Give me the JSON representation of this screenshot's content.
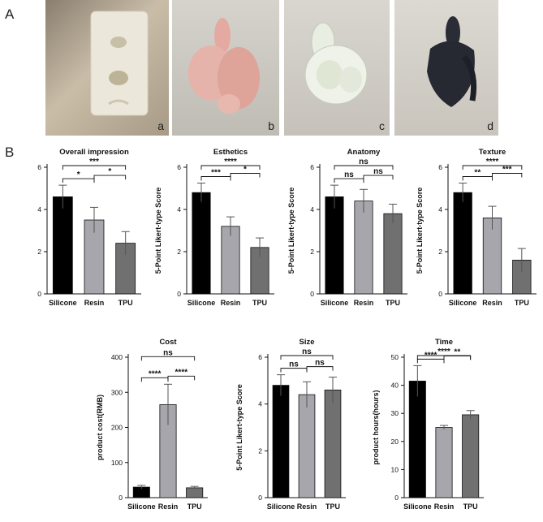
{
  "panel_labels": {
    "a": "A",
    "b": "B"
  },
  "photo_labels": [
    "a",
    "b",
    "c",
    "d"
  ],
  "chart_data": [
    {
      "type": "bar",
      "title": "Overall impression",
      "ylabel": "",
      "categories": [
        "Silicone",
        "Resin",
        "TPU"
      ],
      "values": [
        4.6,
        3.5,
        2.4
      ],
      "errors": [
        0.55,
        0.6,
        0.55
      ],
      "ylim": [
        0,
        6
      ],
      "yticks": [
        0,
        2,
        4,
        6
      ],
      "bar_colors": [
        "#000000",
        "#a6a6ac",
        "#707070"
      ],
      "significance": [
        {
          "from": 0,
          "to": 1,
          "label": "*"
        },
        {
          "from": 0,
          "to": 2,
          "label": "***"
        },
        {
          "from": 1,
          "to": 2,
          "label": "*"
        }
      ]
    },
    {
      "type": "bar",
      "title": "Esthetics",
      "ylabel": "5-Point Likert-type Score",
      "categories": [
        "Silicone",
        "Resin",
        "TPU"
      ],
      "values": [
        4.8,
        3.2,
        2.2
      ],
      "errors": [
        0.45,
        0.45,
        0.45
      ],
      "ylim": [
        0,
        6
      ],
      "yticks": [
        0,
        2,
        4,
        6
      ],
      "bar_colors": [
        "#000000",
        "#a6a6ac",
        "#707070"
      ],
      "significance": [
        {
          "from": 0,
          "to": 1,
          "label": "***"
        },
        {
          "from": 0,
          "to": 2,
          "label": "****"
        },
        {
          "from": 1,
          "to": 2,
          "label": "*"
        }
      ]
    },
    {
      "type": "bar",
      "title": "Anatomy",
      "ylabel": "5-Point Likert-type Score",
      "categories": [
        "Silicone",
        "Resin",
        "TPU"
      ],
      "values": [
        4.6,
        4.4,
        3.8
      ],
      "errors": [
        0.55,
        0.55,
        0.45
      ],
      "ylim": [
        0,
        6
      ],
      "yticks": [
        0,
        2,
        4,
        6
      ],
      "bar_colors": [
        "#000000",
        "#a6a6ac",
        "#707070"
      ],
      "significance": [
        {
          "from": 0,
          "to": 1,
          "label": "ns"
        },
        {
          "from": 0,
          "to": 2,
          "label": "ns"
        },
        {
          "from": 1,
          "to": 2,
          "label": "ns"
        }
      ]
    },
    {
      "type": "bar",
      "title": "Texture",
      "ylabel": "5-Point Likert-type Score",
      "categories": [
        "Silicone",
        "Resin",
        "TPU"
      ],
      "values": [
        4.8,
        3.6,
        1.6
      ],
      "errors": [
        0.45,
        0.55,
        0.55
      ],
      "ylim": [
        0,
        6
      ],
      "yticks": [
        0,
        2,
        4,
        6
      ],
      "bar_colors": [
        "#000000",
        "#a6a6ac",
        "#707070"
      ],
      "significance": [
        {
          "from": 0,
          "to": 1,
          "label": "**"
        },
        {
          "from": 0,
          "to": 2,
          "label": "****"
        },
        {
          "from": 1,
          "to": 2,
          "label": "***"
        }
      ]
    },
    {
      "type": "bar",
      "title": "Cost",
      "ylabel": "product cost(RMB)",
      "categories": [
        "Silicone",
        "Resin",
        "TPU"
      ],
      "values": [
        30,
        265,
        28
      ],
      "errors": [
        5,
        58,
        4
      ],
      "ylim": [
        0,
        400
      ],
      "yticks": [
        0,
        100,
        200,
        300,
        400
      ],
      "bar_colors": [
        "#000000",
        "#a6a6ac",
        "#707070"
      ],
      "significance": [
        {
          "from": 0,
          "to": 1,
          "label": "****"
        },
        {
          "from": 1,
          "to": 2,
          "label": "****"
        },
        {
          "from": 0,
          "to": 2,
          "label": "ns"
        }
      ]
    },
    {
      "type": "bar",
      "title": "Size",
      "ylabel": "5-Point Likert-type Score",
      "categories": [
        "Silicone",
        "Resin",
        "TPU"
      ],
      "values": [
        4.8,
        4.4,
        4.6
      ],
      "errors": [
        0.45,
        0.55,
        0.55
      ],
      "ylim": [
        0,
        6
      ],
      "yticks": [
        0,
        2,
        4,
        6
      ],
      "bar_colors": [
        "#000000",
        "#a6a6ac",
        "#707070"
      ],
      "significance": [
        {
          "from": 0,
          "to": 1,
          "label": "ns"
        },
        {
          "from": 1,
          "to": 2,
          "label": "ns"
        },
        {
          "from": 0,
          "to": 2,
          "label": "ns"
        }
      ]
    },
    {
      "type": "bar",
      "title": "Time",
      "ylabel": "product hours(hours)",
      "categories": [
        "Silicone",
        "Resin",
        "TPU"
      ],
      "values": [
        41.5,
        25,
        29.5
      ],
      "errors": [
        5.5,
        0.7,
        1.5
      ],
      "ylim": [
        0,
        50
      ],
      "yticks": [
        0,
        10,
        20,
        30,
        40,
        50
      ],
      "bar_colors": [
        "#000000",
        "#a6a6ac",
        "#707070"
      ],
      "significance": [
        {
          "from": 0,
          "to": 1,
          "label": "****"
        },
        {
          "from": 0,
          "to": 2,
          "label": "****"
        },
        {
          "from": 1,
          "to": 2,
          "label": "**"
        }
      ]
    }
  ]
}
